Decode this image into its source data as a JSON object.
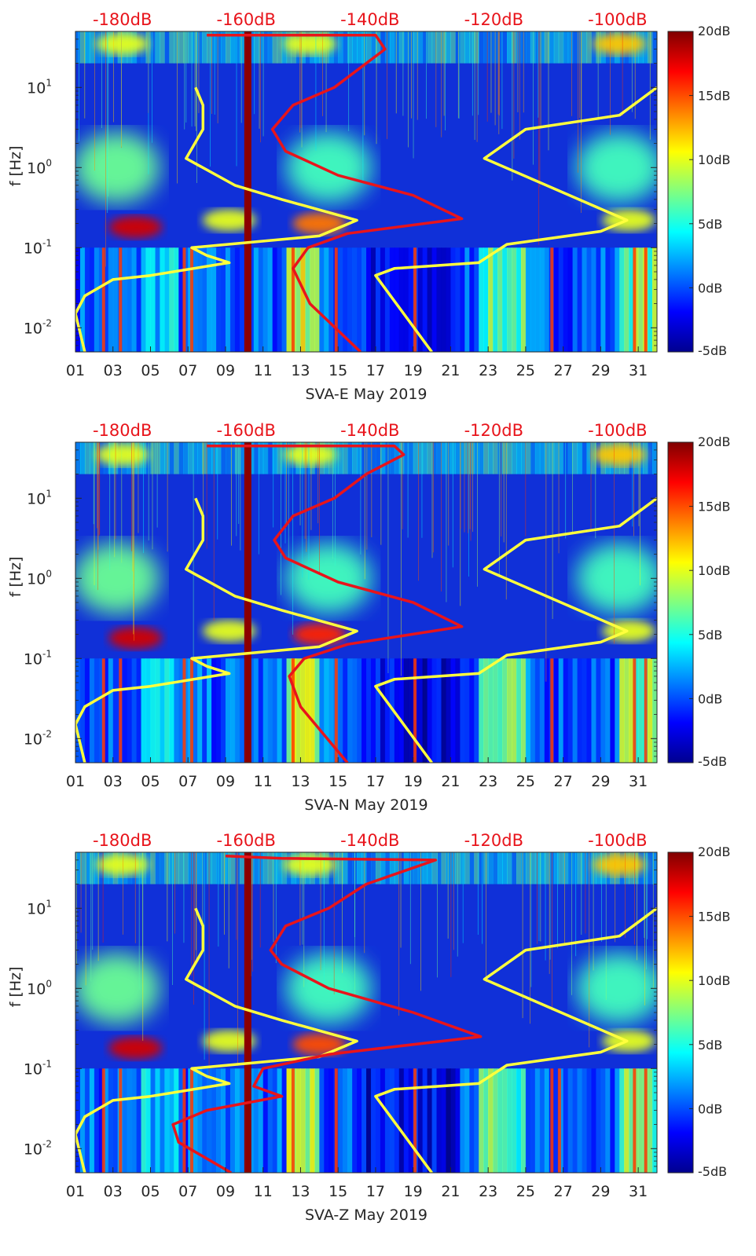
{
  "figure": {
    "colormap": "jet",
    "colors": {
      "spectrogram_low": "#00008f",
      "spectrogram_high": "#800000",
      "model_curve": "#ffff3d",
      "psd_curve": "#e8141b",
      "top_axis_text": "#e8141b"
    }
  },
  "chart_data": [
    {
      "type": "heatmap",
      "xlabel": "SVA-E May 2019",
      "ylabel": "f [Hz]",
      "x_ticks": [
        "01",
        "03",
        "05",
        "07",
        "09",
        "11",
        "13",
        "15",
        "17",
        "19",
        "21",
        "23",
        "25",
        "27",
        "29",
        "31"
      ],
      "xlim": [
        1,
        32
      ],
      "y_scale": "log",
      "ylim": [
        0.005,
        50
      ],
      "y_ticks": [
        {
          "value": 0.01,
          "base": "10",
          "exp": "-2"
        },
        {
          "value": 0.1,
          "base": "10",
          "exp": "-1"
        },
        {
          "value": 1,
          "base": "10",
          "exp": "0"
        },
        {
          "value": 10,
          "base": "10",
          "exp": "1"
        }
      ],
      "top_ticks": [
        {
          "label": "-180dB",
          "x": 3.5
        },
        {
          "label": "-160dB",
          "x": 10.1
        },
        {
          "label": "-140dB",
          "x": 16.7
        },
        {
          "label": "-120dB",
          "x": 23.3
        },
        {
          "label": "-100dB",
          "x": 29.9
        }
      ],
      "colorbar": {
        "range": [
          -5,
          20
        ],
        "ticks": [
          {
            "value": 20,
            "label": "20dB"
          },
          {
            "value": 15,
            "label": "15dB"
          },
          {
            "value": 10,
            "label": "10dB"
          },
          {
            "value": 5,
            "label": "5dB"
          },
          {
            "value": 0,
            "label": "0dB"
          },
          {
            "value": -5,
            "label": "-5dB"
          }
        ]
      },
      "model_curves": [
        {
          "points": [
            [
              1.5,
              0.005
            ],
            [
              1.0,
              0.015
            ],
            [
              1.5,
              0.025
            ],
            [
              3.0,
              0.04
            ],
            [
              5.0,
              0.045
            ],
            [
              9.2,
              0.065
            ],
            [
              8.0,
              0.08
            ],
            [
              7.2,
              0.1
            ],
            [
              14.0,
              0.14
            ],
            [
              16.0,
              0.22
            ],
            [
              12.0,
              0.4
            ],
            [
              9.5,
              0.6
            ],
            [
              6.9,
              1.3
            ],
            [
              7.8,
              3.0
            ],
            [
              7.8,
              6.0
            ],
            [
              7.4,
              10.0
            ]
          ]
        },
        {
          "points": [
            [
              20.0,
              0.005
            ],
            [
              17.0,
              0.045
            ],
            [
              18.0,
              0.055
            ],
            [
              22.5,
              0.065
            ],
            [
              24.0,
              0.11
            ],
            [
              29.0,
              0.16
            ],
            [
              30.4,
              0.22
            ],
            [
              22.8,
              1.3
            ],
            [
              25.0,
              3.0
            ],
            [
              30.0,
              4.5
            ],
            [
              32.0,
              10.0
            ]
          ]
        }
      ],
      "psd_curve": {
        "points": [
          [
            16.2,
            0.005
          ],
          [
            13.5,
            0.02
          ],
          [
            12.6,
            0.055
          ],
          [
            13.4,
            0.1
          ],
          [
            15.5,
            0.15
          ],
          [
            21.6,
            0.23
          ],
          [
            19.0,
            0.45
          ],
          [
            15.0,
            0.8
          ],
          [
            12.2,
            1.6
          ],
          [
            11.5,
            3.0
          ],
          [
            12.6,
            6.0
          ],
          [
            14.8,
            10.0
          ],
          [
            16.5,
            20.0
          ],
          [
            17.5,
            30.0
          ],
          [
            17.0,
            45.0
          ],
          [
            8.0,
            45.0
          ]
        ]
      },
      "bright_columns": [
        2.5,
        3.4,
        6.8,
        7.2,
        12.6,
        14.9,
        19.1,
        26.4,
        30.8,
        31.4
      ],
      "energy_blobs": [
        {
          "x": 4.2,
          "f": 0.18,
          "level": 18
        },
        {
          "x": 14.0,
          "f": 0.2,
          "level": 14
        },
        {
          "x": 9.2,
          "f": 0.22,
          "level": 10
        },
        {
          "x": 30.5,
          "f": 0.22,
          "level": 10
        },
        {
          "x": 3.2,
          "f": 1.0,
          "level": 7
        },
        {
          "x": 14.5,
          "f": 1.0,
          "level": 6
        },
        {
          "x": 30.0,
          "f": 1.0,
          "level": 6
        },
        {
          "x": 3.5,
          "f": 35.0,
          "level": 10
        },
        {
          "x": 13.5,
          "f": 35.0,
          "level": 10
        },
        {
          "x": 30.0,
          "f": 35.0,
          "level": 12
        }
      ]
    },
    {
      "type": "heatmap",
      "xlabel": "SVA-N May 2019",
      "ylabel": "f [Hz]",
      "x_ticks": [
        "01",
        "03",
        "05",
        "07",
        "09",
        "11",
        "13",
        "15",
        "17",
        "19",
        "21",
        "23",
        "25",
        "27",
        "29",
        "31"
      ],
      "xlim": [
        1,
        32
      ],
      "y_scale": "log",
      "ylim": [
        0.005,
        50
      ],
      "y_ticks": [
        {
          "value": 0.01,
          "base": "10",
          "exp": "-2"
        },
        {
          "value": 0.1,
          "base": "10",
          "exp": "-1"
        },
        {
          "value": 1,
          "base": "10",
          "exp": "0"
        },
        {
          "value": 10,
          "base": "10",
          "exp": "1"
        }
      ],
      "top_ticks": [
        {
          "label": "-180dB",
          "x": 3.5
        },
        {
          "label": "-160dB",
          "x": 10.1
        },
        {
          "label": "-140dB",
          "x": 16.7
        },
        {
          "label": "-120dB",
          "x": 23.3
        },
        {
          "label": "-100dB",
          "x": 29.9
        }
      ],
      "colorbar": {
        "range": [
          -5,
          20
        ],
        "ticks": [
          {
            "value": 20,
            "label": "20dB"
          },
          {
            "value": 15,
            "label": "15dB"
          },
          {
            "value": 10,
            "label": "10dB"
          },
          {
            "value": 5,
            "label": "5dB"
          },
          {
            "value": 0,
            "label": "0dB"
          },
          {
            "value": -5,
            "label": "-5dB"
          }
        ]
      },
      "model_curves": [
        {
          "points": [
            [
              1.5,
              0.005
            ],
            [
              1.0,
              0.015
            ],
            [
              1.5,
              0.025
            ],
            [
              3.0,
              0.04
            ],
            [
              5.0,
              0.045
            ],
            [
              9.2,
              0.065
            ],
            [
              8.0,
              0.08
            ],
            [
              7.2,
              0.1
            ],
            [
              14.0,
              0.14
            ],
            [
              16.0,
              0.22
            ],
            [
              12.0,
              0.4
            ],
            [
              9.5,
              0.6
            ],
            [
              6.9,
              1.3
            ],
            [
              7.8,
              3.0
            ],
            [
              7.8,
              6.0
            ],
            [
              7.4,
              10.0
            ]
          ]
        },
        {
          "points": [
            [
              20.0,
              0.005
            ],
            [
              17.0,
              0.045
            ],
            [
              18.0,
              0.055
            ],
            [
              22.5,
              0.065
            ],
            [
              24.0,
              0.11
            ],
            [
              29.0,
              0.16
            ],
            [
              30.4,
              0.22
            ],
            [
              22.8,
              1.3
            ],
            [
              25.0,
              3.0
            ],
            [
              30.0,
              4.5
            ],
            [
              32.0,
              10.0
            ]
          ]
        }
      ],
      "psd_curve": {
        "points": [
          [
            15.5,
            0.005
          ],
          [
            13.0,
            0.025
          ],
          [
            12.4,
            0.06
          ],
          [
            13.2,
            0.1
          ],
          [
            15.5,
            0.15
          ],
          [
            21.6,
            0.25
          ],
          [
            19.0,
            0.5
          ],
          [
            15.0,
            0.9
          ],
          [
            12.2,
            1.8
          ],
          [
            11.6,
            3.0
          ],
          [
            12.6,
            6.0
          ],
          [
            14.8,
            10.0
          ],
          [
            16.5,
            20.0
          ],
          [
            18.5,
            35.0
          ],
          [
            18.0,
            45.0
          ],
          [
            8.0,
            45.0
          ]
        ]
      },
      "bright_columns": [
        2.5,
        3.4,
        6.8,
        7.2,
        12.6,
        14.9,
        19.1,
        26.4,
        30.8,
        31.4
      ],
      "energy_blobs": [
        {
          "x": 4.2,
          "f": 0.18,
          "level": 18
        },
        {
          "x": 14.0,
          "f": 0.2,
          "level": 16
        },
        {
          "x": 9.2,
          "f": 0.22,
          "level": 10
        },
        {
          "x": 30.5,
          "f": 0.22,
          "level": 10
        },
        {
          "x": 3.2,
          "f": 1.0,
          "level": 7
        },
        {
          "x": 14.5,
          "f": 1.0,
          "level": 6
        },
        {
          "x": 30.0,
          "f": 1.0,
          "level": 6
        },
        {
          "x": 3.5,
          "f": 35.0,
          "level": 10
        },
        {
          "x": 13.5,
          "f": 35.0,
          "level": 10
        },
        {
          "x": 30.0,
          "f": 35.0,
          "level": 12
        }
      ]
    },
    {
      "type": "heatmap",
      "xlabel": "SVA-Z May 2019",
      "ylabel": "f [Hz]",
      "x_ticks": [
        "01",
        "03",
        "05",
        "07",
        "09",
        "11",
        "13",
        "15",
        "17",
        "19",
        "21",
        "23",
        "25",
        "27",
        "29",
        "31"
      ],
      "xlim": [
        1,
        32
      ],
      "y_scale": "log",
      "ylim": [
        0.005,
        50
      ],
      "y_ticks": [
        {
          "value": 0.01,
          "base": "10",
          "exp": "-2"
        },
        {
          "value": 0.1,
          "base": "10",
          "exp": "-1"
        },
        {
          "value": 1,
          "base": "10",
          "exp": "0"
        },
        {
          "value": 10,
          "base": "10",
          "exp": "1"
        }
      ],
      "top_ticks": [
        {
          "label": "-180dB",
          "x": 3.5
        },
        {
          "label": "-160dB",
          "x": 10.1
        },
        {
          "label": "-140dB",
          "x": 16.7
        },
        {
          "label": "-120dB",
          "x": 23.3
        },
        {
          "label": "-100dB",
          "x": 29.9
        }
      ],
      "colorbar": {
        "range": [
          -5,
          20
        ],
        "ticks": [
          {
            "value": 20,
            "label": "20dB"
          },
          {
            "value": 15,
            "label": "15dB"
          },
          {
            "value": 10,
            "label": "10dB"
          },
          {
            "value": 5,
            "label": "5dB"
          },
          {
            "value": 0,
            "label": "0dB"
          },
          {
            "value": -5,
            "label": "-5dB"
          }
        ]
      },
      "model_curves": [
        {
          "points": [
            [
              1.5,
              0.005
            ],
            [
              1.0,
              0.015
            ],
            [
              1.5,
              0.025
            ],
            [
              3.0,
              0.04
            ],
            [
              5.0,
              0.045
            ],
            [
              9.2,
              0.065
            ],
            [
              8.0,
              0.08
            ],
            [
              7.2,
              0.1
            ],
            [
              14.0,
              0.14
            ],
            [
              16.0,
              0.22
            ],
            [
              12.0,
              0.4
            ],
            [
              9.5,
              0.6
            ],
            [
              6.9,
              1.3
            ],
            [
              7.8,
              3.0
            ],
            [
              7.8,
              6.0
            ],
            [
              7.4,
              10.0
            ]
          ]
        },
        {
          "points": [
            [
              20.0,
              0.005
            ],
            [
              17.0,
              0.045
            ],
            [
              18.0,
              0.055
            ],
            [
              22.5,
              0.065
            ],
            [
              24.0,
              0.11
            ],
            [
              29.0,
              0.16
            ],
            [
              30.4,
              0.22
            ],
            [
              22.8,
              1.3
            ],
            [
              25.0,
              3.0
            ],
            [
              30.0,
              4.5
            ],
            [
              32.0,
              10.0
            ]
          ]
        }
      ],
      "psd_curve": {
        "points": [
          [
            9.3,
            0.005
          ],
          [
            6.5,
            0.012
          ],
          [
            6.2,
            0.02
          ],
          [
            8.0,
            0.03
          ],
          [
            12.0,
            0.045
          ],
          [
            10.5,
            0.06
          ],
          [
            11.0,
            0.1
          ],
          [
            14.5,
            0.15
          ],
          [
            22.6,
            0.25
          ],
          [
            19.0,
            0.5
          ],
          [
            14.5,
            1.0
          ],
          [
            12.0,
            2.0
          ],
          [
            11.4,
            3.0
          ],
          [
            12.2,
            6.0
          ],
          [
            14.5,
            10.0
          ],
          [
            16.5,
            20.0
          ],
          [
            20.2,
            40.0
          ],
          [
            12.0,
            42.0
          ],
          [
            9.0,
            45.0
          ]
        ]
      },
      "bright_columns": [
        2.5,
        3.4,
        6.8,
        7.2,
        12.6,
        14.9,
        19.1,
        26.4,
        26.8,
        30.8,
        31.4
      ],
      "energy_blobs": [
        {
          "x": 4.2,
          "f": 0.18,
          "level": 18
        },
        {
          "x": 14.0,
          "f": 0.2,
          "level": 15
        },
        {
          "x": 9.2,
          "f": 0.22,
          "level": 10
        },
        {
          "x": 30.5,
          "f": 0.22,
          "level": 10
        },
        {
          "x": 3.2,
          "f": 1.0,
          "level": 7
        },
        {
          "x": 14.5,
          "f": 1.0,
          "level": 6
        },
        {
          "x": 30.0,
          "f": 1.0,
          "level": 6
        },
        {
          "x": 3.5,
          "f": 35.0,
          "level": 10
        },
        {
          "x": 13.5,
          "f": 35.0,
          "level": 10
        },
        {
          "x": 30.0,
          "f": 35.0,
          "level": 12
        }
      ]
    }
  ]
}
